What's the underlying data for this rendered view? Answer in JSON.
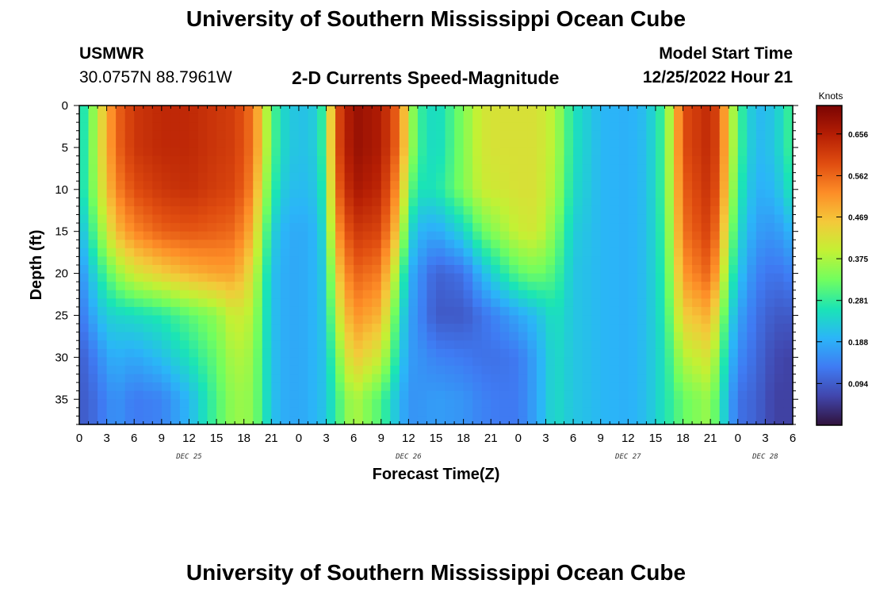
{
  "header": {
    "title": "University of Southern Mississippi Ocean Cube",
    "station_name": "USMWR",
    "coordinates": "30.0757N  88.7961W",
    "plot_title": "2-D Currents Speed-Magnitude",
    "model_start_label": "Model Start Time",
    "model_start_value": "12/25/2022 Hour 21"
  },
  "footer": {
    "title": "University of Southern Mississippi Ocean Cube"
  },
  "chart_data": {
    "type": "heatmap",
    "title": "2-D Currents Speed-Magnitude",
    "xlabel": "Forecast Time(Z)",
    "ylabel": "Depth (ft)",
    "x_range_hours": [
      0,
      78
    ],
    "x_ticks": [
      {
        "hour": 0,
        "label": "0"
      },
      {
        "hour": 3,
        "label": "3"
      },
      {
        "hour": 6,
        "label": "6"
      },
      {
        "hour": 9,
        "label": "9"
      },
      {
        "hour": 12,
        "label": "12"
      },
      {
        "hour": 15,
        "label": "15"
      },
      {
        "hour": 18,
        "label": "18"
      },
      {
        "hour": 21,
        "label": "21"
      },
      {
        "hour": 24,
        "label": "0"
      },
      {
        "hour": 27,
        "label": "3"
      },
      {
        "hour": 30,
        "label": "6"
      },
      {
        "hour": 33,
        "label": "9"
      },
      {
        "hour": 36,
        "label": "12"
      },
      {
        "hour": 39,
        "label": "15"
      },
      {
        "hour": 42,
        "label": "18"
      },
      {
        "hour": 45,
        "label": "21"
      },
      {
        "hour": 48,
        "label": "0"
      },
      {
        "hour": 51,
        "label": "3"
      },
      {
        "hour": 54,
        "label": "6"
      },
      {
        "hour": 57,
        "label": "9"
      },
      {
        "hour": 60,
        "label": "12"
      },
      {
        "hour": 63,
        "label": "15"
      },
      {
        "hour": 66,
        "label": "18"
      },
      {
        "hour": 69,
        "label": "21"
      },
      {
        "hour": 72,
        "label": "0"
      },
      {
        "hour": 75,
        "label": "3"
      },
      {
        "hour": 78,
        "label": "6"
      }
    ],
    "date_labels": [
      {
        "hour": 12,
        "label": "DEC 25"
      },
      {
        "hour": 36,
        "label": "DEC 26"
      },
      {
        "hour": 60,
        "label": "DEC 27"
      },
      {
        "hour": 75,
        "label": "DEC 28"
      }
    ],
    "depth_range_ft": [
      0,
      38
    ],
    "y_ticks": [
      0,
      5,
      10,
      15,
      20,
      25,
      30,
      35
    ],
    "colorbar": {
      "label": "Knots",
      "range": [
        0.0,
        0.72
      ],
      "ticks": [
        0.656,
        0.562,
        0.469,
        0.375,
        0.281,
        0.188,
        0.094
      ],
      "colors": [
        "#30123b",
        "#4146ac",
        "#3f7bf3",
        "#2bb5f8",
        "#1ae4b6",
        "#71fe5f",
        "#c3f134",
        "#f4c93a",
        "#fd8d27",
        "#e04d10",
        "#b51e04",
        "#7a0403"
      ]
    },
    "grid": {
      "time_step_hours": 1,
      "depth_step_ft": 1,
      "note": "speed field (knots) sampled as key time columns; values interpolated in time for each depth level",
      "key_times": [
        0,
        1,
        2,
        3,
        4,
        6,
        9,
        12,
        15,
        17,
        19,
        20,
        21,
        22,
        24,
        26,
        27,
        28,
        30,
        33,
        35,
        36,
        37,
        39,
        42,
        44,
        46,
        48,
        50,
        52,
        54,
        57,
        60,
        62,
        64,
        66,
        69,
        70,
        71,
        72,
        74,
        76,
        78
      ],
      "key_depths": [
        0,
        5,
        10,
        15,
        20,
        25,
        30,
        35,
        38
      ],
      "speed_knots": [
        [
          0.24,
          0.24,
          0.24,
          0.2,
          0.15,
          0.12,
          0.09,
          0.09,
          0.09
        ],
        [
          0.3,
          0.3,
          0.3,
          0.26,
          0.2,
          0.16,
          0.12,
          0.1,
          0.1
        ],
        [
          0.4,
          0.4,
          0.38,
          0.33,
          0.26,
          0.2,
          0.14,
          0.12,
          0.12
        ],
        [
          0.48,
          0.48,
          0.46,
          0.4,
          0.3,
          0.23,
          0.18,
          0.14,
          0.14
        ],
        [
          0.56,
          0.56,
          0.53,
          0.47,
          0.35,
          0.24,
          0.19,
          0.16,
          0.16
        ],
        [
          0.62,
          0.62,
          0.59,
          0.53,
          0.41,
          0.25,
          0.18,
          0.13,
          0.13
        ],
        [
          0.64,
          0.64,
          0.62,
          0.57,
          0.45,
          0.27,
          0.21,
          0.14,
          0.14
        ],
        [
          0.64,
          0.64,
          0.63,
          0.58,
          0.48,
          0.31,
          0.26,
          0.2,
          0.2
        ],
        [
          0.62,
          0.62,
          0.61,
          0.57,
          0.5,
          0.35,
          0.32,
          0.3,
          0.3
        ],
        [
          0.61,
          0.61,
          0.6,
          0.56,
          0.5,
          0.41,
          0.38,
          0.36,
          0.36
        ],
        [
          0.55,
          0.55,
          0.53,
          0.48,
          0.42,
          0.38,
          0.36,
          0.35,
          0.35
        ],
        [
          0.44,
          0.44,
          0.4,
          0.35,
          0.31,
          0.29,
          0.28,
          0.28,
          0.28
        ],
        [
          0.32,
          0.32,
          0.3,
          0.25,
          0.22,
          0.22,
          0.22,
          0.22,
          0.22
        ],
        [
          0.25,
          0.25,
          0.23,
          0.2,
          0.19,
          0.19,
          0.19,
          0.19,
          0.19
        ],
        [
          0.21,
          0.21,
          0.2,
          0.18,
          0.18,
          0.18,
          0.18,
          0.18,
          0.18
        ],
        [
          0.23,
          0.23,
          0.22,
          0.2,
          0.2,
          0.2,
          0.2,
          0.2,
          0.2
        ],
        [
          0.32,
          0.32,
          0.3,
          0.27,
          0.24,
          0.23,
          0.22,
          0.22,
          0.22
        ],
        [
          0.58,
          0.58,
          0.55,
          0.5,
          0.44,
          0.38,
          0.32,
          0.28,
          0.28
        ],
        [
          0.69,
          0.69,
          0.67,
          0.62,
          0.57,
          0.52,
          0.46,
          0.38,
          0.38
        ],
        [
          0.66,
          0.66,
          0.64,
          0.6,
          0.54,
          0.48,
          0.4,
          0.3,
          0.3
        ],
        [
          0.55,
          0.55,
          0.5,
          0.44,
          0.34,
          0.27,
          0.24,
          0.2,
          0.2
        ],
        [
          0.4,
          0.4,
          0.34,
          0.26,
          0.2,
          0.18,
          0.17,
          0.16,
          0.16
        ],
        [
          0.29,
          0.29,
          0.26,
          0.2,
          0.16,
          0.15,
          0.16,
          0.16,
          0.16
        ],
        [
          0.24,
          0.24,
          0.26,
          0.18,
          0.1,
          0.09,
          0.14,
          0.17,
          0.17
        ],
        [
          0.34,
          0.34,
          0.34,
          0.24,
          0.12,
          0.09,
          0.13,
          0.16,
          0.16
        ],
        [
          0.41,
          0.41,
          0.4,
          0.32,
          0.2,
          0.12,
          0.12,
          0.14,
          0.14
        ],
        [
          0.42,
          0.42,
          0.41,
          0.36,
          0.26,
          0.15,
          0.12,
          0.13,
          0.13
        ],
        [
          0.42,
          0.42,
          0.42,
          0.4,
          0.31,
          0.18,
          0.13,
          0.13,
          0.13
        ],
        [
          0.42,
          0.42,
          0.42,
          0.41,
          0.33,
          0.21,
          0.18,
          0.18,
          0.18
        ],
        [
          0.38,
          0.38,
          0.37,
          0.34,
          0.3,
          0.26,
          0.25,
          0.25,
          0.25
        ],
        [
          0.26,
          0.26,
          0.25,
          0.23,
          0.22,
          0.22,
          0.22,
          0.22,
          0.22
        ],
        [
          0.2,
          0.2,
          0.2,
          0.2,
          0.2,
          0.2,
          0.2,
          0.2,
          0.2
        ],
        [
          0.19,
          0.19,
          0.19,
          0.19,
          0.19,
          0.19,
          0.19,
          0.19,
          0.19
        ],
        [
          0.21,
          0.21,
          0.21,
          0.21,
          0.21,
          0.21,
          0.21,
          0.21,
          0.21
        ],
        [
          0.3,
          0.3,
          0.3,
          0.29,
          0.28,
          0.27,
          0.26,
          0.26,
          0.26
        ],
        [
          0.59,
          0.59,
          0.57,
          0.55,
          0.51,
          0.45,
          0.38,
          0.32,
          0.32
        ],
        [
          0.64,
          0.64,
          0.63,
          0.61,
          0.57,
          0.49,
          0.42,
          0.36,
          0.36
        ],
        [
          0.58,
          0.58,
          0.56,
          0.52,
          0.46,
          0.38,
          0.32,
          0.28,
          0.28
        ],
        [
          0.44,
          0.44,
          0.42,
          0.38,
          0.32,
          0.26,
          0.22,
          0.19,
          0.19
        ],
        [
          0.3,
          0.3,
          0.28,
          0.25,
          0.22,
          0.18,
          0.15,
          0.12,
          0.12
        ],
        [
          0.2,
          0.2,
          0.19,
          0.17,
          0.14,
          0.12,
          0.11,
          0.1,
          0.1
        ],
        [
          0.22,
          0.22,
          0.2,
          0.16,
          0.12,
          0.09,
          0.07,
          0.06,
          0.06
        ],
        [
          0.3,
          0.3,
          0.27,
          0.2,
          0.14,
          0.09,
          0.06,
          0.06,
          0.06
        ]
      ]
    }
  }
}
